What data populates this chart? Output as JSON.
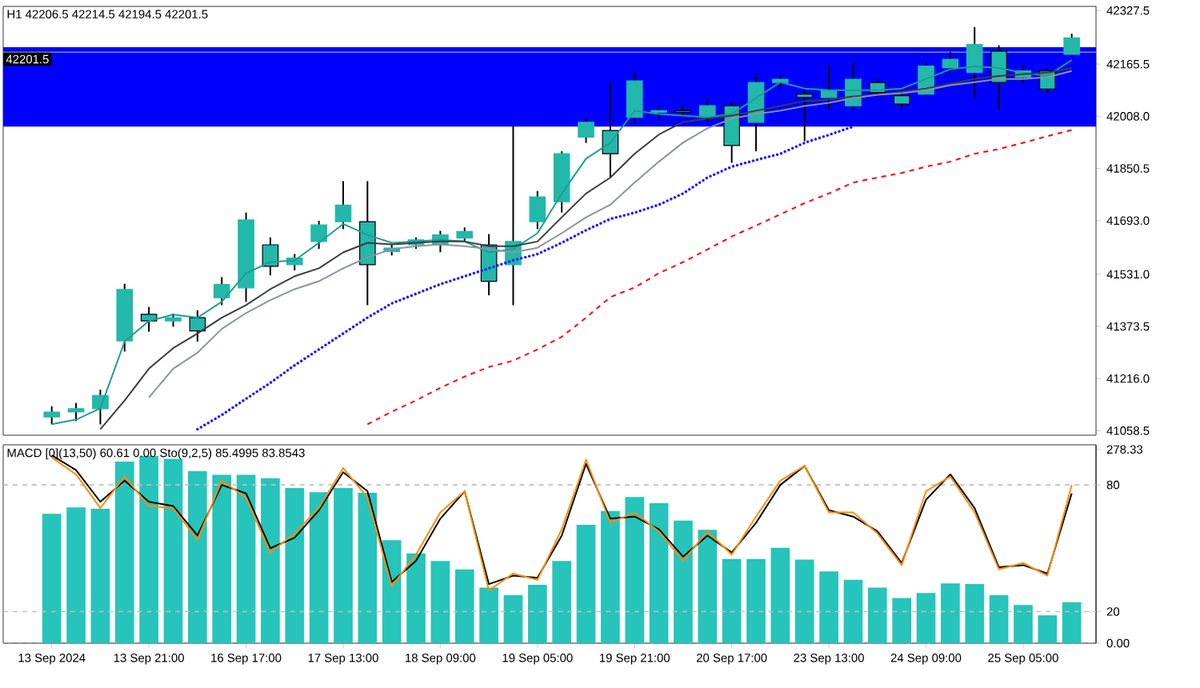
{
  "chart_data": [
    {
      "type": "candlestick",
      "title": "H1  42206.5 42214.5 42194.5 42201.5",
      "color": "#22b8aa",
      "categories": [
        null,
        null,
        null,
        null,
        null,
        null,
        null,
        null,
        null,
        null,
        null,
        null,
        null,
        null,
        null,
        null,
        null,
        null,
        null,
        null,
        null,
        null,
        null,
        null,
        null,
        null,
        null,
        null,
        null,
        null,
        null,
        null,
        null,
        null,
        null,
        null,
        null,
        null,
        null,
        null,
        null,
        null,
        null
      ],
      "ohlc": [
        [
          41100,
          41130,
          41080,
          41115
        ],
        [
          41115,
          41140,
          41090,
          41125
        ],
        [
          41125,
          41180,
          41080,
          41165
        ],
        [
          41330,
          41500,
          41300,
          41485
        ],
        [
          41410,
          41430,
          41360,
          41390
        ],
        [
          41390,
          41410,
          41375,
          41400
        ],
        [
          41400,
          41420,
          41330,
          41360
        ],
        [
          41460,
          41520,
          41440,
          41500
        ],
        [
          41490,
          41715,
          41450,
          41695
        ],
        [
          41620,
          41640,
          41530,
          41555
        ],
        [
          41560,
          41590,
          41545,
          41580
        ],
        [
          41630,
          41690,
          41610,
          41680
        ],
        [
          41690,
          41810,
          41670,
          41740
        ],
        [
          41690,
          41810,
          41440,
          41560
        ],
        [
          41600,
          41620,
          41590,
          41610
        ],
        [
          41620,
          41640,
          41610,
          41635
        ],
        [
          41620,
          41660,
          41600,
          41650
        ],
        [
          41640,
          41670,
          41630,
          41660
        ],
        [
          41620,
          41650,
          41470,
          41510
        ],
        [
          41560,
          41980,
          41440,
          41630
        ],
        [
          41690,
          41780,
          41670,
          41765
        ],
        [
          41750,
          41900,
          41720,
          41895
        ],
        [
          41945,
          42000,
          41930,
          41990
        ],
        [
          41965,
          42110,
          41825,
          41895
        ],
        [
          42005,
          42140,
          41990,
          42115
        ],
        [
          42020,
          42035,
          42000,
          42025
        ],
        [
          42025,
          42040,
          42010,
          42020
        ],
        [
          42005,
          42060,
          41995,
          42040
        ],
        [
          42040,
          42050,
          41870,
          41920
        ],
        [
          41990,
          42135,
          41905,
          42110
        ],
        [
          42110,
          42130,
          42095,
          42120
        ],
        [
          42075,
          42090,
          41935,
          42065
        ],
        [
          42065,
          42160,
          42030,
          42085
        ],
        [
          42040,
          42170,
          42030,
          42120
        ],
        [
          42110,
          42120,
          42070,
          42080
        ],
        [
          42070,
          42080,
          42035,
          42045
        ],
        [
          42075,
          42170,
          42070,
          42160
        ],
        [
          42155,
          42200,
          42140,
          42180
        ],
        [
          42140,
          42275,
          42065,
          42225
        ],
        [
          42205,
          42220,
          42030,
          42110
        ],
        [
          42125,
          42160,
          42110,
          42145
        ],
        [
          42145,
          42150,
          42080,
          42090
        ],
        [
          42195,
          42255,
          42190,
          42245
        ]
      ],
      "series": [
        {
          "type": "line",
          "color": "#1f9e90",
          "line_style": "solid",
          "values": [
            41078,
            41092,
            41126,
            41328,
            41390,
            41409,
            41400,
            41448,
            41534,
            41568,
            41573,
            41626,
            41683,
            41650,
            41626,
            41630,
            41635,
            41630,
            41597,
            41607,
            41655,
            41775,
            41880,
            41928,
            42025,
            42015,
            42010,
            42005,
            42015,
            42063,
            42111,
            42092,
            42087,
            42087,
            42087,
            42092,
            42121,
            42150,
            42159,
            42154,
            42140,
            42130,
            42178
          ]
        },
        {
          "type": "line",
          "color": "#3c3c44",
          "line_style": "solid",
          "values": [
            null,
            null,
            41063,
            41150,
            41246,
            41308,
            41352,
            41400,
            41438,
            41486,
            41525,
            41549,
            41597,
            41626,
            41621,
            41626,
            41630,
            41630,
            41616,
            41616,
            41630,
            41703,
            41775,
            41823,
            41895,
            41953,
            41991,
            42001,
            42010,
            42025,
            42039,
            42054,
            42058,
            42068,
            42073,
            42082,
            42092,
            42106,
            42121,
            42130,
            42135,
            42140,
            42154
          ]
        },
        {
          "type": "line",
          "color": "#8a94a2",
          "line_style": "solid",
          "values": [
            null,
            null,
            null,
            null,
            41159,
            41246,
            41294,
            41366,
            41414,
            41453,
            41486,
            41510,
            41549,
            41582,
            41607,
            41616,
            41621,
            41616,
            41607,
            41597,
            41611,
            41655,
            41703,
            41741,
            41808,
            41871,
            41929,
            41972,
            42001,
            42015,
            42025,
            42039,
            42049,
            42063,
            42073,
            42078,
            42087,
            42102,
            42111,
            42121,
            42121,
            42126,
            42145
          ]
        },
        {
          "type": "line",
          "color": "#1a1aff",
          "line_style": "dotted",
          "values": [
            null,
            null,
            null,
            null,
            null,
            null,
            41063,
            41106,
            41155,
            41203,
            41256,
            41304,
            41352,
            41400,
            41443,
            41472,
            41501,
            41525,
            41549,
            41573,
            41592,
            41626,
            41664,
            41698,
            41717,
            41741,
            41775,
            41823,
            41856,
            41876,
            41895,
            41928,
            41952,
            41977,
            null,
            null,
            null,
            null,
            null,
            null,
            null,
            null,
            null
          ]
        },
        {
          "type": "line",
          "color": "#ff0000",
          "line_style": "dashed",
          "values": [
            null,
            null,
            null,
            null,
            null,
            null,
            null,
            null,
            null,
            null,
            null,
            null,
            null,
            41078,
            41116,
            41150,
            41188,
            41222,
            41251,
            41270,
            41304,
            41342,
            41400,
            41462,
            41491,
            41534,
            41568,
            41606,
            41645,
            41678,
            41712,
            41746,
            41775,
            41808,
            41823,
            41837,
            41856,
            41871,
            41895,
            41909,
            41928,
            41948,
            41967
          ]
        }
      ],
      "ylim": [
        41045,
        42340
      ],
      "yticks": [
        {
          "value": 41058.5,
          "label": "41058.5"
        },
        {
          "value": 41216,
          "label": "41216.0"
        },
        {
          "value": 41373.5,
          "label": "41373.5"
        },
        {
          "value": 41531,
          "label": "41531.0"
        },
        {
          "value": 41693,
          "label": "41693.0"
        },
        {
          "value": 41850.5,
          "label": "41850.5"
        },
        {
          "value": 42008,
          "label": "42008.0"
        },
        {
          "value": 42165.5,
          "label": "42165.5"
        },
        {
          "value": 42327.5,
          "label": "42327.5"
        }
      ],
      "ref_lines": [
        {
          "axis": "y",
          "value": 42201.5,
          "label": "42201.5",
          "color": "#8090a0"
        }
      ],
      "bands": [
        {
          "axis": "y",
          "from": 41977,
          "to": 42217,
          "color": "#0000ff"
        }
      ]
    },
    {
      "type": "bar",
      "title": "MACD [0](13,50) 60.61 0.00  Sto(9,2,5) 85.4995 83.8543",
      "categories": [
        "13 Sep 2024",
        null,
        null,
        null,
        "13 Sep 21:00",
        null,
        null,
        null,
        "16 Sep 17:00",
        null,
        null,
        null,
        "17 Sep 13:00",
        null,
        null,
        null,
        "18 Sep 09:00",
        null,
        null,
        null,
        "19 Sep 05:00",
        null,
        null,
        null,
        "19 Sep 21:00",
        null,
        null,
        null,
        "20 Sep 17:00",
        null,
        null,
        null,
        "23 Sep 13:00",
        null,
        null,
        null,
        "24 Sep 09:00",
        null,
        null,
        null,
        "25 Sep 05:00",
        null,
        null
      ],
      "series": [
        {
          "type": "bar",
          "color": "#26c4bb",
          "values": [
            186,
            195,
            193,
            261,
            269,
            265,
            247,
            242,
            242,
            237,
            223,
            217,
            223,
            216,
            148,
            129,
            118,
            106,
            80,
            69,
            84,
            118,
            170,
            190,
            210,
            201,
            176,
            163,
            121,
            121,
            137,
            120,
            103,
            91,
            80,
            65,
            72,
            86,
            85,
            69,
            55,
            40,
            59
          ]
        },
        {
          "type": "line",
          "axis": "y2",
          "color": "#000000",
          "values": [
            94,
            87,
            72,
            82,
            72,
            70,
            56,
            80,
            76,
            50,
            55,
            68,
            86,
            77,
            34,
            44,
            64,
            77,
            33,
            37,
            36,
            56,
            90,
            64,
            65,
            59,
            46,
            56,
            48,
            62,
            80,
            89,
            68,
            65,
            58,
            43,
            73,
            85,
            69,
            41,
            42,
            38,
            76
          ]
        },
        {
          "type": "line",
          "axis": "y2",
          "color": "#ff8c00",
          "values": [
            93,
            85,
            69,
            84,
            70,
            69,
            54,
            82,
            74,
            48,
            57,
            69,
            88,
            74,
            32,
            47,
            67,
            77,
            30,
            38,
            35,
            59,
            92,
            62,
            67,
            58,
            44,
            58,
            47,
            65,
            82,
            89,
            67,
            67,
            57,
            42,
            77,
            84,
            67,
            40,
            43,
            37,
            80
          ]
        }
      ],
      "ylim": [
        0,
        285
      ],
      "yticks": [
        {
          "value": 0,
          "label": "0.00"
        },
        278.33
      ],
      "y2lim": [
        5,
        99
      ],
      "y2ticks": [
        20,
        80
      ],
      "ref_lines": [
        {
          "axis": "y2",
          "value": 80,
          "color": "#c0c0c0",
          "line_style": "dashed"
        },
        {
          "axis": "y2",
          "value": 20,
          "color": "#c0c0c0",
          "line_style": "dashed"
        },
        {
          "axis": "y",
          "value": 0,
          "color": "#808890",
          "line_style": "dashed"
        }
      ]
    }
  ]
}
